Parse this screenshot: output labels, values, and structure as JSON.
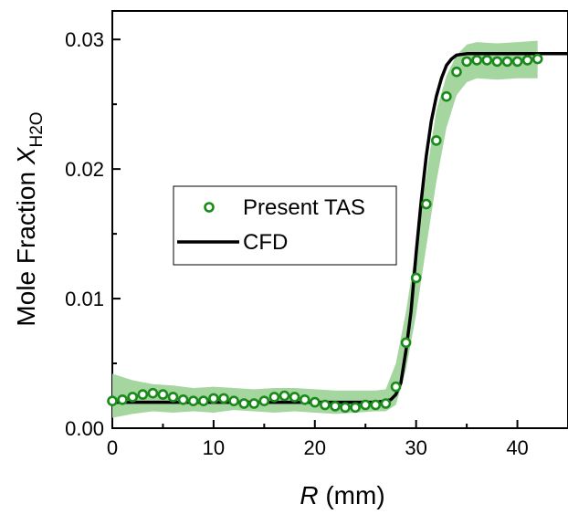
{
  "chart_data": {
    "type": "scatter",
    "xlabel": {
      "italic": "R",
      "rest": " (mm)"
    },
    "ylabel": {
      "main": "Mole Fraction ",
      "italic": "X",
      "sub": "H2O"
    },
    "xlim": [
      0,
      45
    ],
    "ylim": [
      0.0,
      0.0322
    ],
    "xticks": [
      0,
      10,
      20,
      30,
      40
    ],
    "xtick_labels": [
      "0",
      "10",
      "20",
      "30",
      "40"
    ],
    "yticks": [
      0.0,
      0.01,
      0.02,
      0.03
    ],
    "ytick_labels": [
      "0.00",
      "0.01",
      "0.02",
      "0.03"
    ],
    "legend_position": "center-left",
    "colors": {
      "tas": "#1a8a1a",
      "band": "#a5d6a0",
      "cfd": "#000000"
    },
    "series": [
      {
        "name": "Present TAS",
        "marker": "open-circle",
        "x": [
          0,
          1,
          2,
          3,
          4,
          5,
          6,
          7,
          8,
          9,
          10,
          11,
          12,
          13,
          14,
          15,
          16,
          17,
          18,
          19,
          20,
          21,
          22,
          23,
          24,
          25,
          26,
          27,
          28,
          29,
          30,
          31,
          32,
          33,
          34,
          35,
          36,
          37,
          38,
          39,
          40,
          41,
          42
        ],
        "y": [
          0.0021,
          0.0022,
          0.0024,
          0.0026,
          0.0027,
          0.0026,
          0.0024,
          0.0022,
          0.0021,
          0.0021,
          0.0023,
          0.0023,
          0.0021,
          0.0019,
          0.0019,
          0.0021,
          0.0024,
          0.0025,
          0.0024,
          0.0022,
          0.002,
          0.0018,
          0.0017,
          0.0016,
          0.0016,
          0.0018,
          0.0018,
          0.0019,
          0.0032,
          0.0066,
          0.0116,
          0.0173,
          0.0222,
          0.0256,
          0.0275,
          0.0283,
          0.0284,
          0.0284,
          0.0283,
          0.0283,
          0.0283,
          0.0284,
          0.0285
        ]
      },
      {
        "name": "CFD",
        "marker": "line",
        "x": [
          0,
          26,
          27,
          27.5,
          28,
          28.5,
          29,
          29.5,
          30,
          30.5,
          31,
          31.5,
          32,
          32.5,
          33,
          33.5,
          34,
          35,
          36,
          45
        ],
        "y": [
          0.002,
          0.002,
          0.0021,
          0.0022,
          0.0026,
          0.0035,
          0.006,
          0.009,
          0.0135,
          0.0175,
          0.021,
          0.0237,
          0.0256,
          0.027,
          0.028,
          0.0285,
          0.0288,
          0.0289,
          0.0289,
          0.0289
        ]
      }
    ],
    "uncertainty_band": {
      "x": [
        0,
        2,
        4,
        6,
        8,
        10,
        12,
        14,
        16,
        18,
        20,
        22,
        24,
        26,
        27,
        28,
        29,
        30,
        31,
        32,
        33,
        34,
        35,
        36,
        38,
        40,
        42
      ],
      "lower": [
        0.0008,
        0.0011,
        0.0013,
        0.0012,
        0.0013,
        0.0012,
        0.0014,
        0.0013,
        0.0012,
        0.0013,
        0.0012,
        0.0011,
        0.0012,
        0.0013,
        0.0013,
        0.0018,
        0.0045,
        0.0088,
        0.014,
        0.019,
        0.0232,
        0.0257,
        0.0267,
        0.027,
        0.0269,
        0.027,
        0.027
      ],
      "upper": [
        0.0042,
        0.0037,
        0.0034,
        0.0033,
        0.0031,
        0.0032,
        0.0031,
        0.003,
        0.0031,
        0.0031,
        0.003,
        0.0029,
        0.0029,
        0.0029,
        0.003,
        0.005,
        0.009,
        0.014,
        0.0195,
        0.0245,
        0.0272,
        0.0288,
        0.0296,
        0.0298,
        0.0297,
        0.0298,
        0.0299
      ]
    }
  }
}
